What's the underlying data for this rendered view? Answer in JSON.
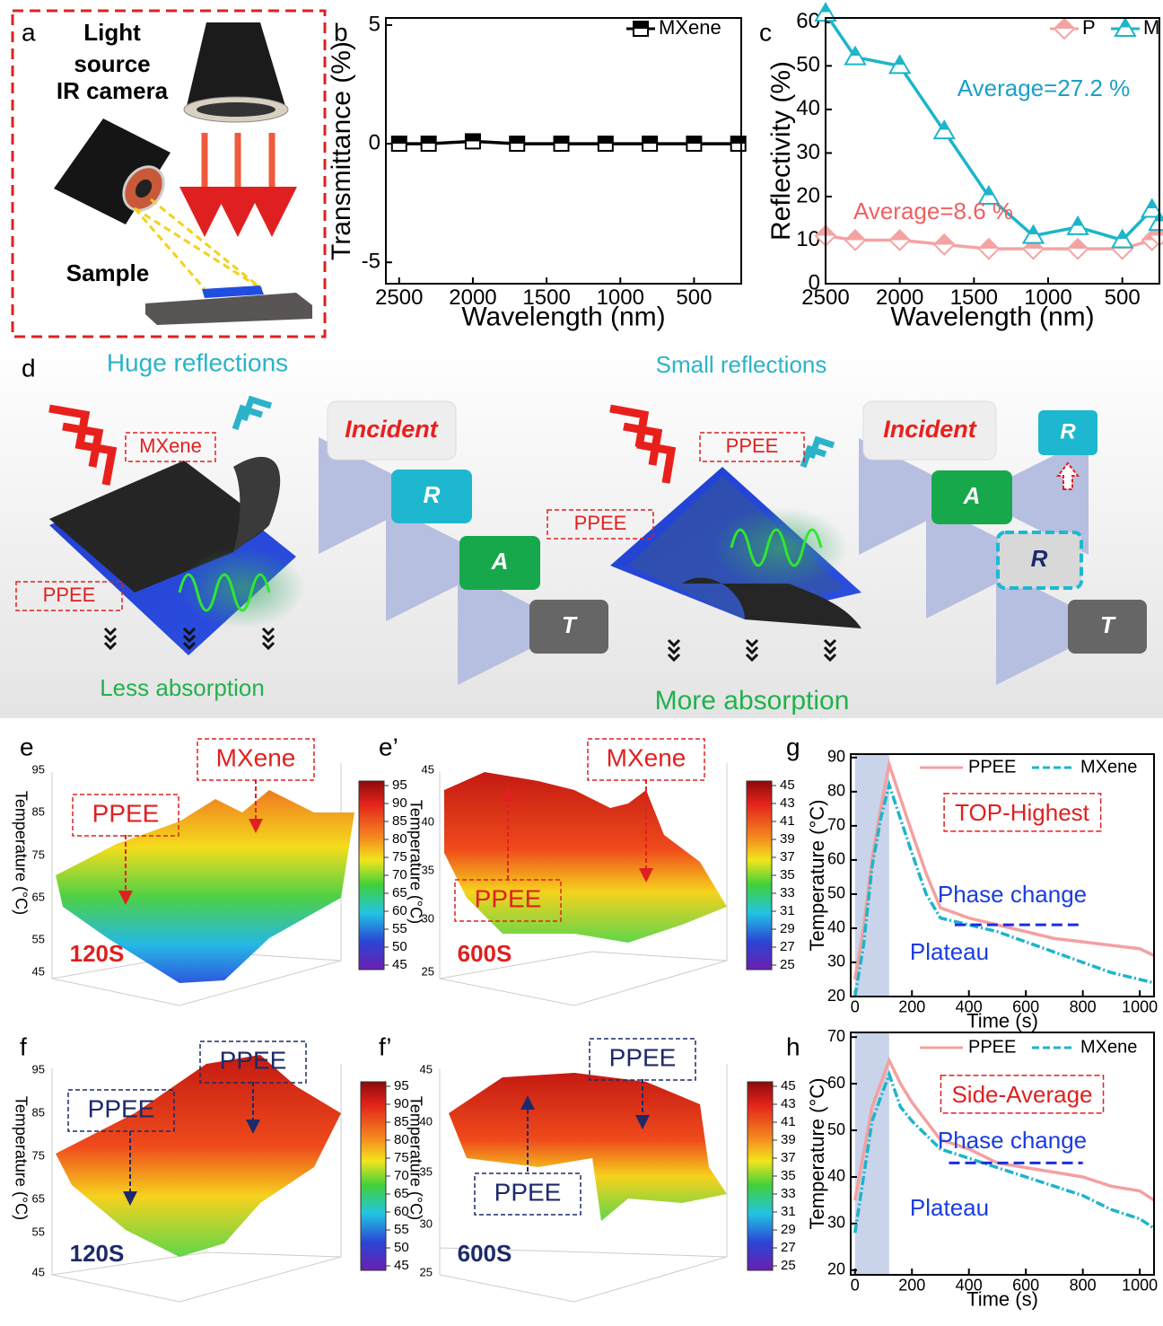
{
  "panel_labels": [
    "a",
    "b",
    "c",
    "d",
    "e",
    "e’",
    "f",
    "f’",
    "g",
    "h"
  ],
  "panel_a": {
    "camera_label": [
      "Light",
      "source",
      "IR camera"
    ],
    "sample_label": "Sample"
  },
  "panel_d": {
    "left_title": "Huge reflections",
    "right_title": "Small reflections",
    "left_bottom": "Less absorption",
    "right_bottom": "More absorption",
    "material_tags": [
      "MXene",
      "PPEE",
      "PPEE",
      "PPEE"
    ],
    "flow_left": [
      "Incident",
      "R",
      "A",
      "T"
    ],
    "flow_right": [
      "Incident",
      "R",
      "A",
      "R",
      "T"
    ]
  },
  "heat_maps": [
    {
      "tags": [
        "MXene",
        "PPEE"
      ],
      "time": "120S",
      "z_label": "Temperature (°C)",
      "z_ticks": [
        95,
        85,
        75,
        65,
        55,
        45
      ],
      "colorbar_ticks": [
        95,
        90,
        85,
        80,
        75,
        70,
        65,
        60,
        55,
        50,
        45
      ]
    },
    {
      "tags": [
        "MXene",
        "PPEE"
      ],
      "time": "600S",
      "z_label": "Temperature (°C)",
      "z_ticks": [
        45,
        40,
        35,
        30,
        25
      ],
      "colorbar_ticks": [
        45,
        43,
        41,
        39,
        37,
        35,
        33,
        31,
        29,
        27,
        25
      ]
    },
    {
      "tags": [
        "PPEE",
        "PPEE"
      ],
      "time": "120S",
      "z_label": "Temperature (°C)",
      "z_ticks": [
        95,
        85,
        75,
        65,
        55,
        45
      ],
      "colorbar_ticks": [
        95,
        90,
        85,
        80,
        75,
        70,
        65,
        60,
        55,
        50,
        45
      ]
    },
    {
      "tags": [
        "PPEE",
        "PPEE"
      ],
      "time": "600S",
      "z_label": "Temperature (°C)",
      "z_ticks": [
        45,
        40,
        35,
        30,
        25
      ],
      "colorbar_ticks": [
        45,
        43,
        41,
        39,
        37,
        35,
        33,
        31,
        29,
        27,
        25
      ]
    }
  ],
  "chart_data": [
    {
      "type": "line",
      "y_label": "Transmittance (%)",
      "x_label": "Wavelength (nm)",
      "x": [
        2500,
        2300,
        2000,
        1700,
        1400,
        1100,
        800,
        500,
        200
      ],
      "series": [
        {
          "name": "MXene",
          "color": "#000000",
          "marker": "square",
          "values": [
            0,
            0,
            0.1,
            0,
            0,
            0,
            0,
            0,
            0
          ]
        }
      ],
      "xlim": [
        2590,
        180
      ],
      "xticks": [
        2500,
        2000,
        1500,
        1000,
        500
      ],
      "ylim": [
        -5.9,
        5.3
      ],
      "yticks": [
        -5,
        0,
        5
      ],
      "legend": "upper right"
    },
    {
      "type": "line",
      "y_label": "Reflectivity (%)",
      "x_label": "Wavelength (nm)",
      "annotations": [
        "Average=27.2 %",
        "Average=8.6 %"
      ],
      "x": [
        2500,
        2300,
        2000,
        1700,
        1400,
        1100,
        800,
        500,
        300,
        250
      ],
      "series": [
        {
          "name": "P",
          "color": "#f4a3a3",
          "marker": "diamond",
          "values": [
            11,
            10,
            10,
            9,
            8,
            8,
            8,
            8,
            10,
            11
          ]
        },
        {
          "name": "M",
          "color": "#1cb5c9",
          "marker": "triangle",
          "values": [
            62,
            52,
            50,
            35,
            20,
            11,
            13,
            10,
            17,
            14
          ]
        }
      ],
      "xlim": [
        2500,
        250
      ],
      "xticks": [
        2500,
        2000,
        1500,
        1000,
        500
      ],
      "ylim": [
        0,
        61
      ],
      "yticks": [
        0,
        10,
        20,
        30,
        40,
        50,
        60
      ],
      "legend": "upper right"
    },
    {
      "type": "line",
      "y_label": "Temperature (°C)",
      "x_label": "Time (s)",
      "annotations": [
        "TOP-Highest",
        "Phase change",
        "Plateau"
      ],
      "x": [
        0,
        30,
        60,
        90,
        120,
        160,
        200,
        250,
        300,
        400,
        500,
        600,
        700,
        800,
        900,
        1000,
        1050
      ],
      "series": [
        {
          "name": "PPEE",
          "color": "#f4a0a0",
          "style": "solid",
          "values": [
            25,
            40,
            60,
            75,
            88,
            78,
            68,
            56,
            46,
            43,
            41,
            39,
            37,
            36,
            35,
            34,
            32
          ]
        },
        {
          "name": "MXene",
          "color": "#1cb5c9",
          "style": "dashed",
          "values": [
            20,
            35,
            58,
            72,
            82,
            72,
            62,
            50,
            43,
            41,
            39,
            36,
            33,
            30,
            27,
            25,
            24
          ]
        }
      ],
      "shade": [
        0,
        120
      ],
      "plateau_line": {
        "x": [
          350,
          800
        ],
        "y": 41
      },
      "xlim": [
        -15,
        1050
      ],
      "xticks": [
        0,
        200,
        400,
        600,
        800,
        1000
      ],
      "ylim": [
        20,
        91
      ],
      "yticks": [
        20,
        30,
        40,
        50,
        60,
        70,
        80,
        90
      ],
      "legend": "upper right"
    },
    {
      "type": "line",
      "y_label": "Temperature (°C)",
      "x_label": "Time (s)",
      "annotations": [
        "Side-Average",
        "Phase change",
        "Plateau"
      ],
      "x": [
        0,
        30,
        60,
        90,
        120,
        160,
        200,
        250,
        300,
        400,
        500,
        600,
        700,
        800,
        900,
        1000,
        1050
      ],
      "series": [
        {
          "name": "PPEE",
          "color": "#f4a0a0",
          "style": "solid",
          "values": [
            35,
            45,
            55,
            60,
            65,
            60,
            56,
            52,
            48,
            46,
            43,
            42,
            41,
            40,
            38,
            37,
            35
          ]
        },
        {
          "name": "MXene",
          "color": "#1cb5c9",
          "style": "dashed",
          "values": [
            28,
            40,
            52,
            57,
            62,
            55,
            52,
            49,
            46,
            44,
            42,
            40,
            38,
            36,
            33,
            31,
            29
          ]
        }
      ],
      "shade": [
        0,
        120
      ],
      "plateau_line": {
        "x": [
          330,
          800
        ],
        "y": 43
      },
      "xlim": [
        -15,
        1050
      ],
      "xticks": [
        0,
        200,
        400,
        600,
        800,
        1000
      ],
      "ylim": [
        19,
        71
      ],
      "yticks": [
        20,
        30,
        40,
        50,
        60,
        70
      ],
      "legend": "upper right"
    }
  ]
}
